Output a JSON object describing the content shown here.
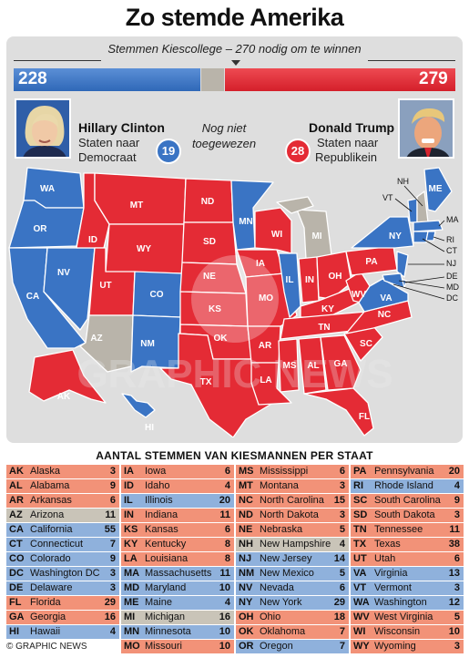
{
  "title": "Zo stemde Amerika",
  "subtitle": "Stemmen Kiescollege – 270 nodig om te winnen",
  "bar": {
    "dem_votes": "228",
    "rep_votes": "279",
    "dem_value": 228,
    "undecided_value": 31,
    "rep_value": 279
  },
  "clinton": {
    "name": "Hillary Clinton",
    "line1": "Staten naar",
    "line2": "Democraat",
    "states": "19"
  },
  "trump": {
    "name": "Donald Trump",
    "line1": "Staten naar",
    "line2": "Republikein",
    "states": "28"
  },
  "undecided": {
    "line1": "Nog niet",
    "line2": "toegewezen"
  },
  "colors": {
    "dem": "#3a74c4",
    "rep": "#e42b35",
    "undecided": "#b9b4aa"
  },
  "watermark": "GRAPHIC NEWS",
  "table_title": "Aantal stemmen van kiesmannen per staat",
  "footer": "© GRAPHIC NEWS",
  "map_labels": [
    "WA",
    "OR",
    "CA",
    "NV",
    "ID",
    "MT",
    "WY",
    "UT",
    "AZ",
    "CO",
    "NM",
    "AK",
    "HI",
    "ND",
    "SD",
    "NE",
    "KS",
    "OK",
    "TX",
    "MN",
    "IA",
    "MO",
    "AR",
    "LA",
    "WI",
    "IL",
    "MI",
    "IN",
    "KY",
    "TN",
    "MS",
    "AL",
    "GA",
    "FL",
    "OH",
    "WV",
    "VA",
    "NC",
    "SC",
    "PA",
    "NY",
    "ME",
    "VT",
    "NH",
    "MA",
    "RI",
    "CT",
    "NJ",
    "DE",
    "MD",
    "DC"
  ],
  "states": [
    [
      {
        "ab": "AK",
        "name": "Alaska",
        "votes": "3",
        "party": "R"
      },
      {
        "ab": "AL",
        "name": "Alabama",
        "votes": "9",
        "party": "R"
      },
      {
        "ab": "AR",
        "name": "Arkansas",
        "votes": "6",
        "party": "R"
      },
      {
        "ab": "AZ",
        "name": "Arizona",
        "votes": "11",
        "party": "U"
      },
      {
        "ab": "CA",
        "name": "California",
        "votes": "55",
        "party": "D"
      },
      {
        "ab": "CT",
        "name": "Connecticut",
        "votes": "7",
        "party": "D"
      },
      {
        "ab": "CO",
        "name": "Colorado",
        "votes": "9",
        "party": "D"
      },
      {
        "ab": "DC",
        "name": "Washington DC",
        "votes": "3",
        "party": "D"
      },
      {
        "ab": "DE",
        "name": "Delaware",
        "votes": "3",
        "party": "D"
      },
      {
        "ab": "FL",
        "name": "Florida",
        "votes": "29",
        "party": "R"
      },
      {
        "ab": "GA",
        "name": "Georgia",
        "votes": "16",
        "party": "R"
      },
      {
        "ab": "HI",
        "name": "Hawaii",
        "votes": "4",
        "party": "D"
      }
    ],
    [
      {
        "ab": "IA",
        "name": "Iowa",
        "votes": "6",
        "party": "R"
      },
      {
        "ab": "ID",
        "name": "Idaho",
        "votes": "4",
        "party": "R"
      },
      {
        "ab": "IL",
        "name": "Illinois",
        "votes": "20",
        "party": "D"
      },
      {
        "ab": "IN",
        "name": "Indiana",
        "votes": "11",
        "party": "R"
      },
      {
        "ab": "KS",
        "name": "Kansas",
        "votes": "6",
        "party": "R"
      },
      {
        "ab": "KY",
        "name": "Kentucky",
        "votes": "8",
        "party": "R"
      },
      {
        "ab": "LA",
        "name": "Louisiana",
        "votes": "8",
        "party": "R"
      },
      {
        "ab": "MA",
        "name": "Massachusetts",
        "votes": "11",
        "party": "D"
      },
      {
        "ab": "MD",
        "name": "Maryland",
        "votes": "10",
        "party": "D"
      },
      {
        "ab": "ME",
        "name": "Maine",
        "votes": "4",
        "party": "D"
      },
      {
        "ab": "MI",
        "name": "Michigan",
        "votes": "16",
        "party": "U"
      },
      {
        "ab": "MN",
        "name": "Minnesota",
        "votes": "10",
        "party": "D"
      },
      {
        "ab": "MO",
        "name": "Missouri",
        "votes": "10",
        "party": "R"
      }
    ],
    [
      {
        "ab": "MS",
        "name": "Mississippi",
        "votes": "6",
        "party": "R"
      },
      {
        "ab": "MT",
        "name": "Montana",
        "votes": "3",
        "party": "R"
      },
      {
        "ab": "NC",
        "name": "North Carolina",
        "votes": "15",
        "party": "R"
      },
      {
        "ab": "ND",
        "name": "North Dakota",
        "votes": "3",
        "party": "R"
      },
      {
        "ab": "NE",
        "name": "Nebraska",
        "votes": "5",
        "party": "R"
      },
      {
        "ab": "NH",
        "name": "New Hampshire",
        "votes": "4",
        "party": "U"
      },
      {
        "ab": "NJ",
        "name": "New Jersey",
        "votes": "14",
        "party": "D"
      },
      {
        "ab": "NM",
        "name": "New Mexico",
        "votes": "5",
        "party": "D"
      },
      {
        "ab": "NV",
        "name": "Nevada",
        "votes": "6",
        "party": "D"
      },
      {
        "ab": "NY",
        "name": "New York",
        "votes": "29",
        "party": "D"
      },
      {
        "ab": "OH",
        "name": "Ohio",
        "votes": "18",
        "party": "R"
      },
      {
        "ab": "OK",
        "name": "Oklahoma",
        "votes": "7",
        "party": "R"
      },
      {
        "ab": "OR",
        "name": "Oregon",
        "votes": "7",
        "party": "D"
      }
    ],
    [
      {
        "ab": "PA",
        "name": "Pennsylvania",
        "votes": "20",
        "party": "R"
      },
      {
        "ab": "RI",
        "name": "Rhode Island",
        "votes": "4",
        "party": "D"
      },
      {
        "ab": "SC",
        "name": "South Carolina",
        "votes": "9",
        "party": "R"
      },
      {
        "ab": "SD",
        "name": "South Dakota",
        "votes": "3",
        "party": "R"
      },
      {
        "ab": "TN",
        "name": "Tennessee",
        "votes": "11",
        "party": "R"
      },
      {
        "ab": "TX",
        "name": "Texas",
        "votes": "38",
        "party": "R"
      },
      {
        "ab": "UT",
        "name": "Utah",
        "votes": "6",
        "party": "R"
      },
      {
        "ab": "VA",
        "name": "Virginia",
        "votes": "13",
        "party": "D"
      },
      {
        "ab": "VT",
        "name": "Vermont",
        "votes": "3",
        "party": "D"
      },
      {
        "ab": "WA",
        "name": "Washington",
        "votes": "12",
        "party": "D"
      },
      {
        "ab": "WV",
        "name": "West Virginia",
        "votes": "5",
        "party": "R"
      },
      {
        "ab": "WI",
        "name": "Wisconsin",
        "votes": "10",
        "party": "R"
      },
      {
        "ab": "WY",
        "name": "Wyoming",
        "votes": "3",
        "party": "R"
      }
    ]
  ]
}
